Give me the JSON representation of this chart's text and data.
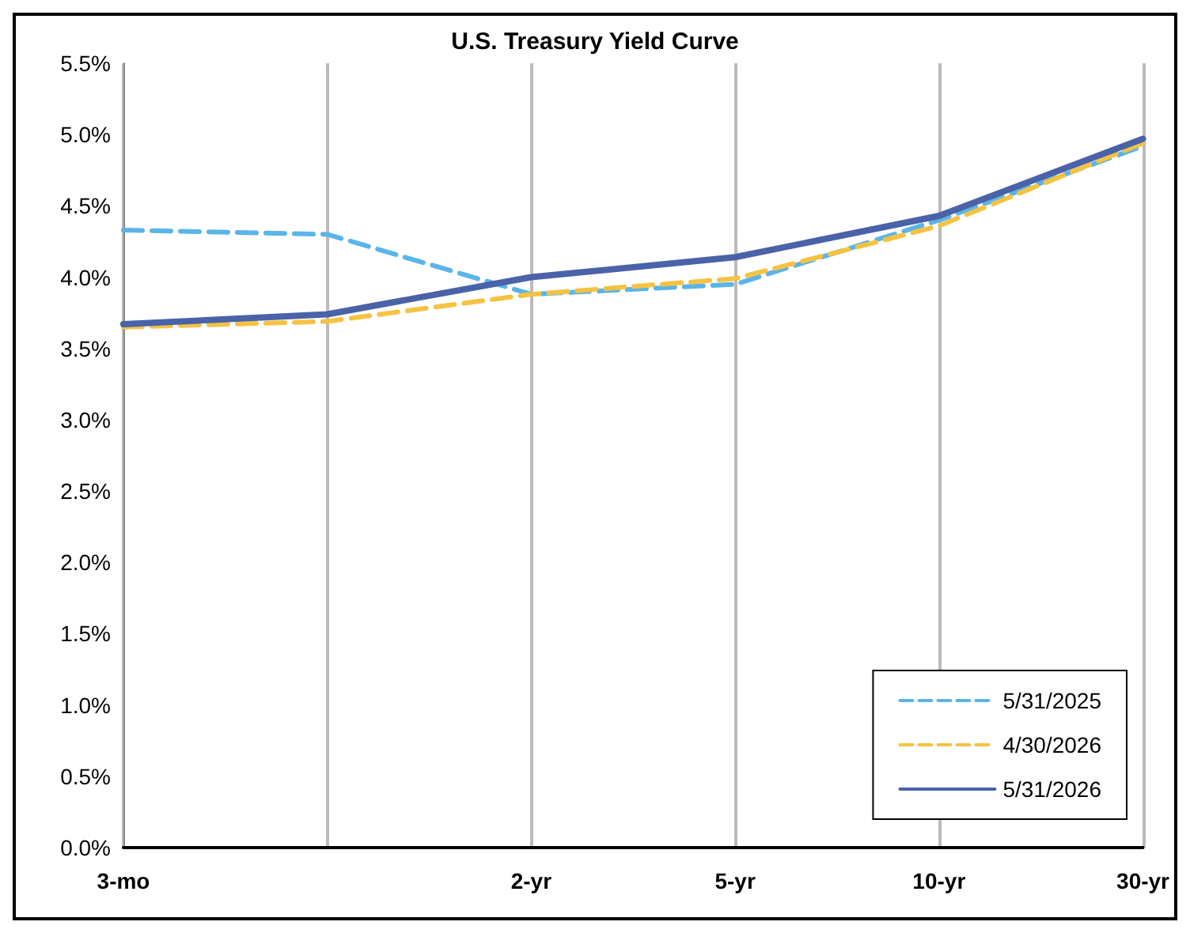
{
  "chart_data": {
    "type": "line",
    "title": "U.S. Treasury Yield Curve",
    "categories": [
      "3-mo",
      null,
      "2-yr",
      "5-yr",
      "10-yr",
      "30-yr"
    ],
    "ylim": [
      0,
      5.5
    ],
    "yticks": [
      {
        "value": 0,
        "label": "0.0%"
      },
      {
        "value": 0.5,
        "label": "0.5%"
      },
      {
        "value": 1,
        "label": "1.0%"
      },
      {
        "value": 1.5,
        "label": "1.5%"
      },
      {
        "value": 2,
        "label": "2.0%"
      },
      {
        "value": 2.5,
        "label": "2.5%"
      },
      {
        "value": 3,
        "label": "3.0%"
      },
      {
        "value": 3.5,
        "label": "3.5%"
      },
      {
        "value": 4,
        "label": "4.0%"
      },
      {
        "value": 4.5,
        "label": "4.5%"
      },
      {
        "value": 5,
        "label": "5.0%"
      },
      {
        "value": 5.5,
        "label": "5.5%"
      }
    ],
    "grid": "x",
    "legend": "bottom right",
    "marker": "none",
    "series": [
      {
        "name": "5/31/2025",
        "color": "#5bb4e8",
        "line_style": "dashed",
        "values": [
          4.33,
          4.3,
          3.88,
          3.95,
          4.4,
          4.92
        ]
      },
      {
        "name": "4/30/2026",
        "color": "#f5c242",
        "line_style": "dashed",
        "values": [
          3.65,
          3.69,
          3.88,
          3.99,
          4.36,
          4.94
        ]
      },
      {
        "name": "5/31/2026",
        "color": "#4a62a8",
        "line_style": "solid",
        "values": [
          3.67,
          3.74,
          4.0,
          4.14,
          4.43,
          4.97
        ]
      }
    ]
  }
}
